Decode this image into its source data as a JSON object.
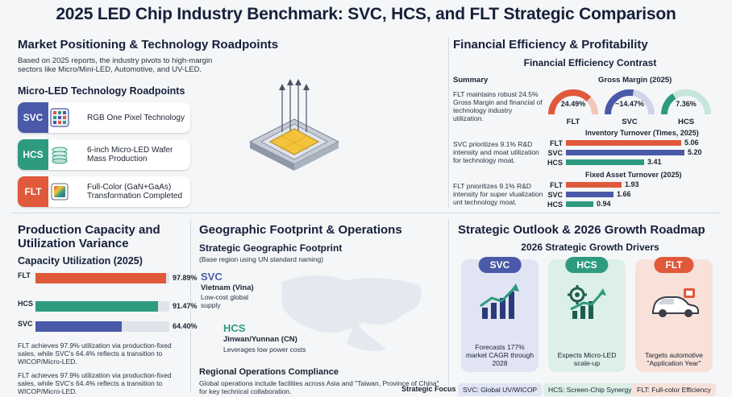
{
  "title": "2025 LED Chip Industry Benchmark: SVC, HCS, and FLT Strategic Comparison",
  "market": {
    "heading": "Market Positioning & Technology Roadpoints",
    "intro": "Based on 2025 reports, the industry pivots to high-margin sectors like Micro/Mini-LED, Automotive, and UV-LED.",
    "roadpoints_heading": "Micro-LED Technology Roadpoints",
    "roadpoints": [
      {
        "tag": "SVC",
        "text": "RGB One Pixel Technology",
        "color": "#4a5aa8"
      },
      {
        "tag": "HCS",
        "text": "6-inch Micro-LED Wafer Mass Production",
        "color": "#2e9b80"
      },
      {
        "tag": "FLT",
        "text": "Full-Color (GaN+GaAs) Transformation Completed",
        "color": "#e0593b"
      }
    ]
  },
  "financial": {
    "heading": "Financial Efficiency & Profitability",
    "subheading": "Financial Efficiency Contrast",
    "summary_label": "Summary",
    "summary": [
      "FLT maintains robust 24.5% Gross Margin and financial of technology industry utilization.",
      "SVC prioritizes 9.1% R&D intensity and moat utilization for technology moat.",
      "FLT pnioritizes 9.1% R&D intensity for super vlualization unt technology moat."
    ],
    "gross_margin_label": "Gross Margin (2025)",
    "gross_margin": [
      {
        "company": "FLT",
        "value_text": "24.49%",
        "value": 24.49,
        "color": "#e0593b"
      },
      {
        "company": "SVC",
        "value_text": "~14.47%",
        "value": 14.47,
        "color": "#4a5aa8"
      },
      {
        "company": "HCS",
        "value_text": "7.36%",
        "value": 7.36,
        "color": "#2e9b80"
      }
    ],
    "inventory_label": "Inventory Turnover (Times, 2025)",
    "inventory": [
      {
        "company": "FLT",
        "value": 5.06,
        "value_text": "5.06",
        "color": "#e0593b"
      },
      {
        "company": "SVC",
        "value": 5.2,
        "value_text": "5.20",
        "color": "#4a5aa8"
      },
      {
        "company": "HCS",
        "value": 3.41,
        "value_text": "3.41",
        "color": "#2e9b80"
      }
    ],
    "fixed_asset_label": "Fixed Asset Turnover (2025)",
    "fixed_asset": [
      {
        "company": "FLT",
        "value": 1.93,
        "value_text": "1.93",
        "color": "#e0593b"
      },
      {
        "company": "SVC",
        "value": 1.66,
        "value_text": "1.66",
        "color": "#4a5aa8"
      },
      {
        "company": "HCS",
        "value": 0.94,
        "value_text": "0.94",
        "color": "#2e9b80"
      }
    ]
  },
  "capacity": {
    "heading": "Production Capacity and Utilization Variance",
    "subheading": "Capacity Utilization (2025)",
    "bars": [
      {
        "company": "FLT",
        "value": 97.89,
        "value_text": "97.89%",
        "color": "#e0593b"
      },
      {
        "company": "HCS",
        "value": 91.47,
        "value_text": "91.47%",
        "color": "#2e9b80"
      },
      {
        "company": "SVC",
        "value": 64.4,
        "value_text": "64.40%",
        "color": "#4a5aa8"
      }
    ],
    "notes": [
      "FLT achieves 97.9% utilization via production-fixed sales, while SVC's 64.4% reflects a transition to WICOP/Micro-LED.",
      "FLT achieves 97.9% utilization via production-fixed sales, while SVC's 64.4% reflects a transition to WICOP/Micro-LED."
    ]
  },
  "geo": {
    "heading": "Geographic Footprint & Operations",
    "subheading": "Strategic Geographic Footprint",
    "note": "(Base region using UN standard naming)",
    "svc_tag": "SVC",
    "svc_region": "Vietnam (Vina)",
    "svc_desc": "Low-cost global supply",
    "hcs_tag": "HCS",
    "hcs_region": "Jinwan/Yunnan (CN)",
    "hcs_desc": "Leverages low power costs",
    "compliance_heading": "Regional Operations Compliance",
    "compliance_text": "Global operations include facilities across Asia and \"Taiwan, Province of China\" for key technical collaboration."
  },
  "outlook": {
    "heading": "Strategic Outlook & 2026 Growth Roadmap",
    "subheading": "2026 Strategic Growth Drivers",
    "cards": [
      {
        "tag": "SVC",
        "text": "Forecasts 177% market CAGR through 2028",
        "color": "#4a5aa8",
        "bg": "#e1e4f3",
        "icon": "rising-chart-icon"
      },
      {
        "tag": "HCS",
        "text": "Expects Micro-LED scale-up",
        "color": "#2e9b80",
        "bg": "#dcefe8",
        "icon": "gear-growth-icon"
      },
      {
        "tag": "FLT",
        "text": "Targets automotive \"Application Year\"",
        "color": "#e0593b",
        "bg": "#f7e1d9",
        "icon": "car-icon"
      }
    ],
    "focus_label": "Strategic Focus",
    "focus": [
      {
        "text": "SVC: Global UV/WICOP",
        "bg": "#e1e4f3"
      },
      {
        "text": "HCS: Screen-Chip Synergy",
        "bg": "#dcefe8"
      },
      {
        "text": "FLT: Full-color Efficiency",
        "bg": "#f7e1d9"
      }
    ]
  }
}
